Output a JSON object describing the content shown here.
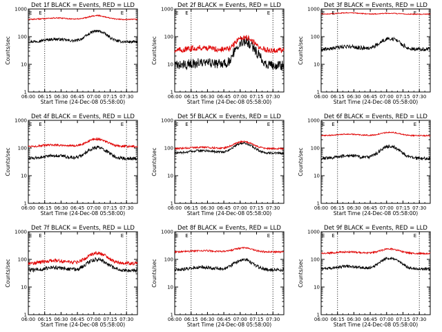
{
  "figure": {
    "ylabel": "Counts/sec",
    "xlabel_prefix": "Start Time",
    "start_time_text": "(24-Dec-08 05:58:00)",
    "marker_letter": "E",
    "colors": {
      "events": "#000000",
      "lld": "#e00000"
    }
  },
  "chart_data": [
    {
      "type": "line",
      "title": "Det 1f BLACK = Events, RED = LLD",
      "xlabel": "Start Time (24-Dec-08 05:58:00)",
      "ylabel": "Counts/sec",
      "yscale": "log",
      "ylim": [
        1,
        1000
      ],
      "x_range": [
        "06:00",
        "07:40"
      ],
      "x_ticks": [
        "06:00",
        "06:15",
        "06:30",
        "06:45",
        "07:00",
        "07:15",
        "07:30"
      ],
      "y_ticks": [
        "1",
        "10",
        "100",
        "1000"
      ],
      "marker_times": [
        "06:15",
        "07:30"
      ],
      "grid": false,
      "series": [
        {
          "values": {
            "base": 65,
            "peak": 160,
            "dip": 0,
            "noise": 0.05
          }
        },
        {
          "values": {
            "base": 420,
            "peak": 580,
            "dip": 0,
            "noise": 0.02
          }
        }
      ]
    },
    {
      "type": "line",
      "title": "Det 2f BLACK = Events, RED = LLD",
      "xlabel": "Start Time (24-Dec-08 05:58:00)",
      "ylabel": "Counts/sec",
      "yscale": "log",
      "ylim": [
        1,
        1000
      ],
      "x_range": [
        "06:00",
        "07:40"
      ],
      "x_ticks": [
        "06:00",
        "06:15",
        "06:30",
        "06:45",
        "07:00",
        "07:15",
        "07:30"
      ],
      "y_ticks": [
        "1",
        "10",
        "100",
        "1000"
      ],
      "marker_times": [
        "06:15",
        "07:30"
      ],
      "grid": false,
      "series": [
        {
          "values": {
            "base": 9,
            "peak": 70,
            "dip": 5,
            "noise": 0.18
          }
        },
        {
          "values": {
            "base": 32,
            "peak": 95,
            "dip": 30,
            "noise": 0.1
          }
        }
      ]
    },
    {
      "type": "line",
      "title": "Det 3f BLACK = Events, RED = LLD",
      "xlabel": "Start Time (24-Dec-08 05:58:00)",
      "ylabel": "Counts/sec",
      "yscale": "log",
      "ylim": [
        1,
        1000
      ],
      "x_range": [
        "06:00",
        "07:40"
      ],
      "x_ticks": [
        "06:00",
        "06:15",
        "06:30",
        "06:45",
        "07:00",
        "07:15",
        "07:30"
      ],
      "y_ticks": [
        "1",
        "10",
        "100",
        "1000"
      ],
      "marker_times": [
        "06:15",
        "07:30"
      ],
      "grid": false,
      "series": [
        {
          "values": {
            "base": 35,
            "peak": 85,
            "dip": 0,
            "noise": 0.07
          }
        },
        {
          "values": {
            "base": 650,
            "peak": 700,
            "dip": 0,
            "noise": 0.015
          }
        }
      ]
    },
    {
      "type": "line",
      "title": "Det 4f BLACK = Events, RED = LLD",
      "xlabel": "Start Time (24-Dec-08 05:58:00)",
      "ylabel": "Counts/sec",
      "yscale": "log",
      "ylim": [
        1,
        1000
      ],
      "x_range": [
        "06:00",
        "07:40"
      ],
      "x_ticks": [
        "06:00",
        "06:15",
        "06:30",
        "06:45",
        "07:00",
        "07:15",
        "07:30"
      ],
      "y_ticks": [
        "1",
        "10",
        "100",
        "1000"
      ],
      "marker_times": [
        "06:15",
        "07:30"
      ],
      "grid": false,
      "series": [
        {
          "values": {
            "base": 42,
            "peak": 105,
            "dip": 0,
            "noise": 0.06
          }
        },
        {
          "values": {
            "base": 115,
            "peak": 210,
            "dip": 0,
            "noise": 0.04
          }
        }
      ]
    },
    {
      "type": "line",
      "title": "Det 5f BLACK = Events, RED = LLD",
      "xlabel": "Start Time (24-Dec-08 05:58:00)",
      "ylabel": "Counts/sec",
      "yscale": "log",
      "ylim": [
        1,
        1000
      ],
      "x_range": [
        "06:00",
        "07:40"
      ],
      "x_ticks": [
        "06:00",
        "06:15",
        "06:30",
        "06:45",
        "07:00",
        "07:15",
        "07:30"
      ],
      "y_ticks": [
        "1",
        "10",
        "100",
        "1000"
      ],
      "marker_times": [
        "06:15",
        "07:30"
      ],
      "grid": false,
      "series": [
        {
          "values": {
            "base": 65,
            "peak": 150,
            "dip": 0,
            "noise": 0.04
          }
        },
        {
          "values": {
            "base": 95,
            "peak": 170,
            "dip": 0,
            "noise": 0.03
          }
        }
      ]
    },
    {
      "type": "line",
      "title": "Det 6f BLACK = Events, RED = LLD",
      "xlabel": "Start Time (24-Dec-08 05:58:00)",
      "ylabel": "Counts/sec",
      "yscale": "log",
      "ylim": [
        1,
        1000
      ],
      "x_range": [
        "06:00",
        "07:40"
      ],
      "x_ticks": [
        "06:00",
        "06:15",
        "06:30",
        "06:45",
        "07:00",
        "07:15",
        "07:30"
      ],
      "y_ticks": [
        "1",
        "10",
        "100",
        "1000"
      ],
      "marker_times": [
        "06:15",
        "07:30"
      ],
      "grid": false,
      "series": [
        {
          "values": {
            "base": 42,
            "peak": 115,
            "dip": 0,
            "noise": 0.06
          }
        },
        {
          "values": {
            "base": 280,
            "peak": 370,
            "dip": 0,
            "noise": 0.02
          }
        }
      ]
    },
    {
      "type": "line",
      "title": "Det 7f BLACK = Events, RED = LLD",
      "xlabel": "Start Time (24-Dec-08 05:58:00)",
      "ylabel": "Counts/sec",
      "yscale": "log",
      "ylim": [
        1,
        1000
      ],
      "x_range": [
        "06:00",
        "07:40"
      ],
      "x_ticks": [
        "06:00",
        "06:15",
        "06:30",
        "06:45",
        "07:00",
        "07:15",
        "07:30"
      ],
      "y_ticks": [
        "1",
        "10",
        "100",
        "1000"
      ],
      "marker_times": [
        "06:15",
        "07:30"
      ],
      "grid": false,
      "series": [
        {
          "values": {
            "base": 40,
            "peak": 100,
            "dip": 0,
            "noise": 0.07
          }
        },
        {
          "values": {
            "base": 72,
            "peak": 170,
            "dip": 0,
            "noise": 0.06
          }
        }
      ]
    },
    {
      "type": "line",
      "title": "Det 8f BLACK = Events, RED = LLD",
      "xlabel": "Start Time (24-Dec-08 05:58:00)",
      "ylabel": "Counts/sec",
      "yscale": "log",
      "ylim": [
        1,
        1000
      ],
      "x_range": [
        "06:00",
        "07:40"
      ],
      "x_ticks": [
        "06:00",
        "06:15",
        "06:30",
        "06:45",
        "07:00",
        "07:15",
        "07:30"
      ],
      "y_ticks": [
        "1",
        "10",
        "100",
        "1000"
      ],
      "marker_times": [
        "06:15",
        "07:30"
      ],
      "grid": false,
      "series": [
        {
          "values": {
            "base": 42,
            "peak": 95,
            "dip": 0,
            "noise": 0.06
          }
        },
        {
          "values": {
            "base": 185,
            "peak": 260,
            "dip": 0,
            "noise": 0.03
          }
        }
      ]
    },
    {
      "type": "line",
      "title": "Det 9f BLACK = Events, RED = LLD",
      "xlabel": "Start Time (24-Dec-08 05:58:00)",
      "ylabel": "Counts/sec",
      "yscale": "log",
      "ylim": [
        1,
        1000
      ],
      "x_range": [
        "06:00",
        "07:40"
      ],
      "x_ticks": [
        "06:00",
        "06:15",
        "06:30",
        "06:45",
        "07:00",
        "07:15",
        "07:30"
      ],
      "y_ticks": [
        "1",
        "10",
        "100",
        "1000"
      ],
      "marker_times": [
        "06:15",
        "07:30"
      ],
      "grid": false,
      "series": [
        {
          "values": {
            "base": 45,
            "peak": 110,
            "dip": 0,
            "noise": 0.05
          }
        },
        {
          "values": {
            "base": 165,
            "peak": 240,
            "dip": 0,
            "noise": 0.03
          }
        }
      ]
    }
  ]
}
